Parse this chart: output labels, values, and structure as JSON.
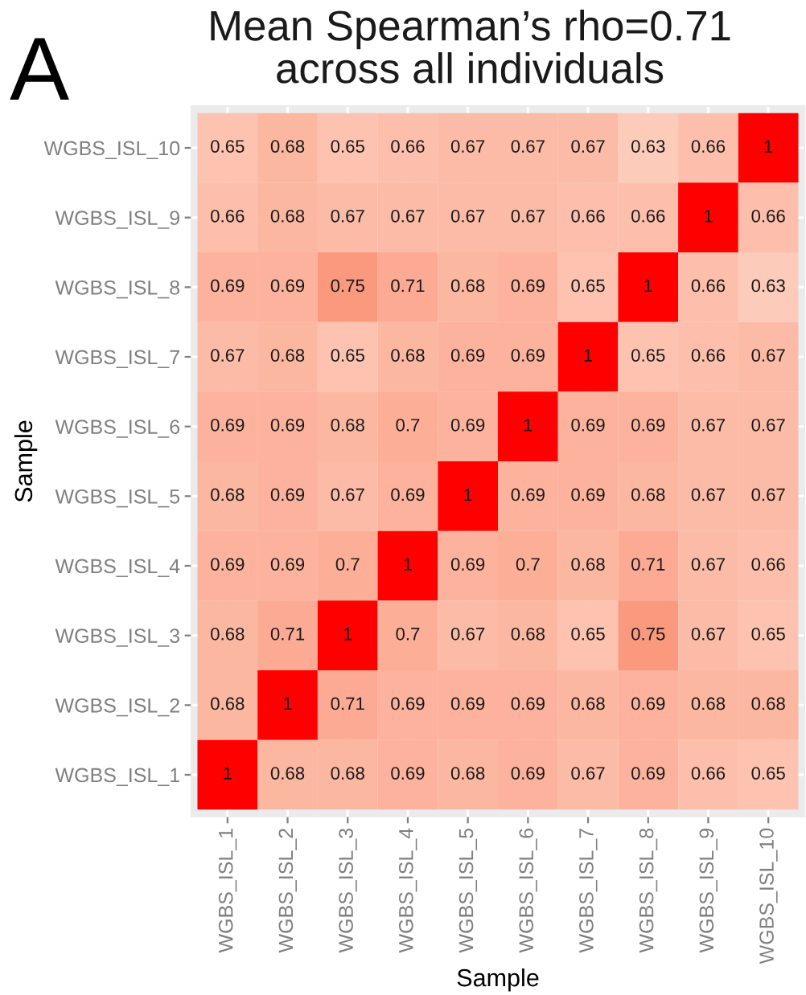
{
  "chart_data": {
    "type": "heatmap",
    "title": "Mean Spearman’s rho=0.71\nacross all individuals",
    "xlabel": "Sample",
    "ylabel": "Sample",
    "annotations": [
      "A"
    ],
    "categories": [
      "WGBS_ISL_1",
      "WGBS_ISL_2",
      "WGBS_ISL_3",
      "WGBS_ISL_4",
      "WGBS_ISL_5",
      "WGBS_ISL_6",
      "WGBS_ISL_7",
      "WGBS_ISL_8",
      "WGBS_ISL_9",
      "WGBS_ISL_10"
    ],
    "y_categories": [
      "WGBS_ISL_10",
      "WGBS_ISL_9",
      "WGBS_ISL_8",
      "WGBS_ISL_7",
      "WGBS_ISL_6",
      "WGBS_ISL_5",
      "WGBS_ISL_4",
      "WGBS_ISL_3",
      "WGBS_ISL_2",
      "WGBS_ISL_1"
    ],
    "cells": [
      [
        0.65,
        0.68,
        0.65,
        0.66,
        0.67,
        0.67,
        0.67,
        0.63,
        0.66,
        1
      ],
      [
        0.66,
        0.68,
        0.67,
        0.67,
        0.67,
        0.67,
        0.66,
        0.66,
        1,
        0.66
      ],
      [
        0.69,
        0.69,
        0.75,
        0.71,
        0.68,
        0.69,
        0.65,
        1,
        0.66,
        0.63
      ],
      [
        0.67,
        0.68,
        0.65,
        0.68,
        0.69,
        0.69,
        1,
        0.65,
        0.66,
        0.67
      ],
      [
        0.69,
        0.69,
        0.68,
        0.7,
        0.69,
        1,
        0.69,
        0.69,
        0.67,
        0.67
      ],
      [
        0.68,
        0.69,
        0.67,
        0.69,
        1,
        0.69,
        0.69,
        0.68,
        0.67,
        0.67
      ],
      [
        0.69,
        0.69,
        0.7,
        1,
        0.69,
        0.7,
        0.68,
        0.71,
        0.67,
        0.66
      ],
      [
        0.68,
        0.71,
        1,
        0.7,
        0.67,
        0.68,
        0.65,
        0.75,
        0.67,
        0.65
      ],
      [
        0.68,
        1,
        0.71,
        0.69,
        0.69,
        0.69,
        0.68,
        0.69,
        0.68,
        0.68
      ],
      [
        1,
        0.68,
        0.68,
        0.69,
        0.68,
        0.69,
        0.67,
        0.69,
        0.66,
        0.65
      ]
    ],
    "data_labels": true,
    "grid": true
  }
}
